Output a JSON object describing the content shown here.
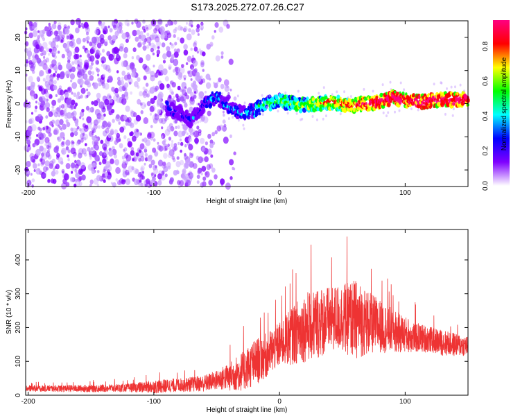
{
  "figure": {
    "title": "S173.2025.272.07.26.C27"
  },
  "chart_data": [
    {
      "type": "heatmap",
      "xlabel": "Height of straight line (km)",
      "ylabel": "Frequency (Hz)",
      "xlim": [
        -202,
        150
      ],
      "ylim": [
        -25,
        25
      ],
      "xticks": [
        -200,
        -100,
        0,
        100
      ],
      "yticks": [
        -20,
        -10,
        0,
        10,
        20
      ],
      "colorbar": {
        "label": "Normalized spectral amplitude",
        "range": [
          0,
          0.95
        ],
        "ticks": [
          0.0,
          0.2,
          0.4,
          0.6,
          0.8
        ],
        "colors": [
          "#ffffff",
          "#7f00ff",
          "#0000ff",
          "#00ffff",
          "#00ff00",
          "#ffff00",
          "#ff0000",
          "#ff0080"
        ]
      },
      "ridge": {
        "x": [
          -90,
          -80,
          -70,
          -60,
          -50,
          -40,
          -30,
          -20,
          -10,
          0,
          10,
          20,
          30,
          40,
          50,
          60,
          70,
          80,
          90,
          100,
          110,
          120,
          130,
          140,
          150
        ],
        "y": [
          -1,
          -3,
          -5,
          0,
          2,
          -1,
          -3,
          -2,
          0,
          1,
          0,
          -0.5,
          0,
          0.5,
          0,
          -0.5,
          0,
          0.5,
          2,
          1,
          0.5,
          1,
          1.5,
          1,
          1.5
        ]
      }
    },
    {
      "type": "line",
      "color": "#ee3333",
      "xlabel": "Height of straight line (km)",
      "ylabel": "SNR (10 * v/v)",
      "xlim": [
        -202,
        150
      ],
      "ylim": [
        0,
        490
      ],
      "xticks": [
        -200,
        -100,
        0,
        100
      ],
      "yticks": [
        0,
        100,
        200,
        300,
        400
      ],
      "envelope": {
        "x": [
          -202,
          -150,
          -120,
          -100,
          -80,
          -60,
          -50,
          -40,
          -30,
          -20,
          -10,
          0,
          10,
          20,
          30,
          40,
          50,
          60,
          70,
          80,
          90,
          100,
          110,
          120,
          130,
          140,
          150
        ],
        "mean": [
          20,
          20,
          22,
          25,
          30,
          35,
          45,
          55,
          70,
          95,
          120,
          150,
          180,
          200,
          215,
          225,
          230,
          225,
          215,
          205,
          190,
          180,
          170,
          165,
          155,
          150,
          145
        ],
        "peak": [
          40,
          45,
          50,
          70,
          75,
          90,
          110,
          150,
          200,
          250,
          270,
          300,
          380,
          430,
          460,
          440,
          460,
          490,
          430,
          380,
          340,
          300,
          270,
          250,
          240,
          230,
          210
        ]
      }
    }
  ]
}
